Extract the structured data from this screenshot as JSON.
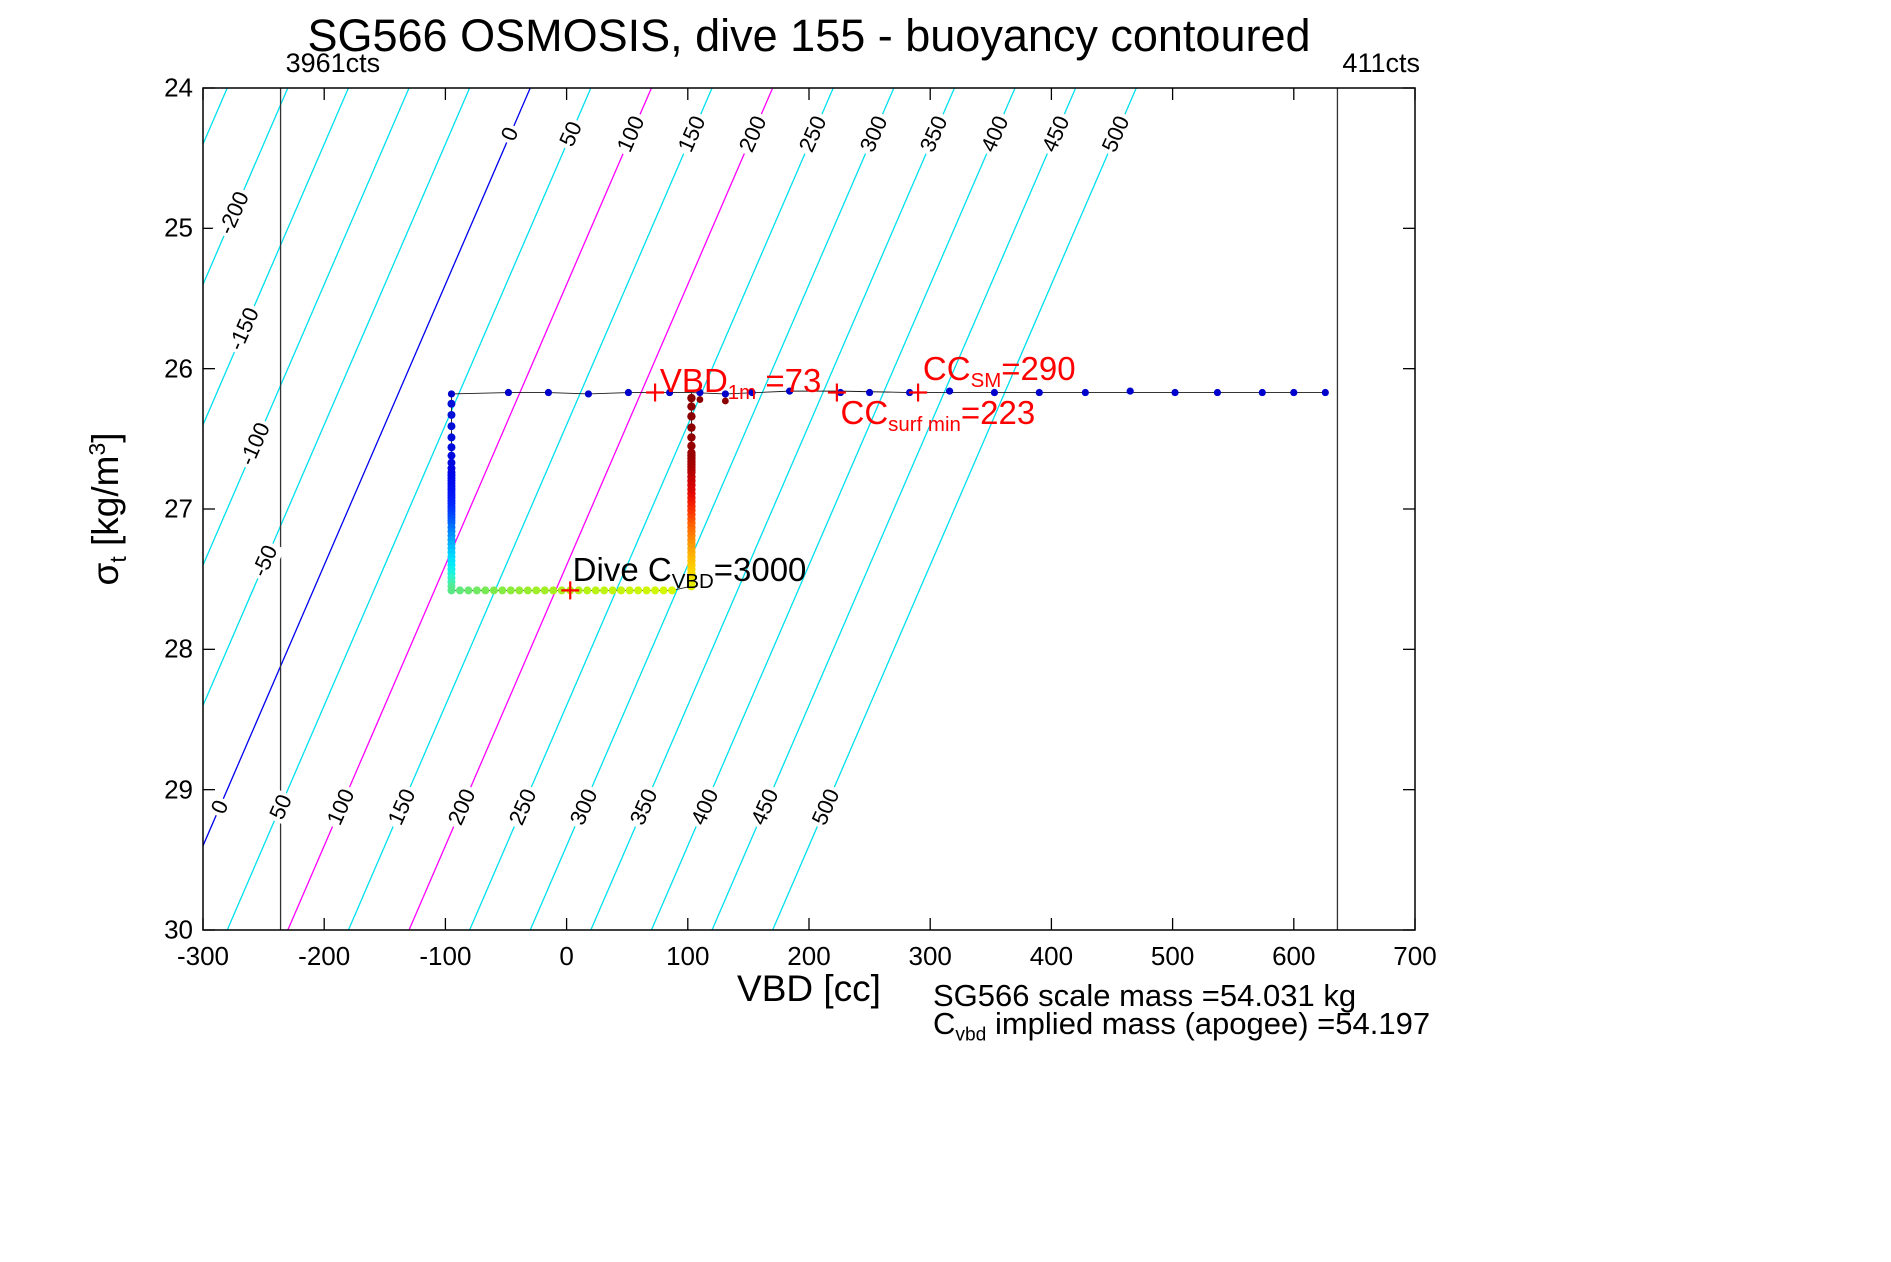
{
  "title": "SG566 OSMOSIS, dive 155 - buoyancy contoured",
  "axes": {
    "xlabel": "VBD [cc]",
    "ylabel": {
      "sigma": "σ",
      "sub": "t",
      "pre": " [kg/m",
      "sup": "3",
      "post": "]"
    },
    "x_ticks": [
      -300,
      -200,
      -100,
      0,
      100,
      200,
      300,
      400,
      500,
      600,
      700
    ],
    "y_ticks": [
      24,
      25,
      26,
      27,
      28,
      29,
      30
    ]
  },
  "footer": {
    "line1": "SG566 scale mass =54.031 kg",
    "line2_main": "C",
    "line2_sub": "vbd",
    "line2_rest": " implied mass (apogee) =54.197"
  },
  "chart_data": {
    "type": "scatter",
    "title": "SG566 OSMOSIS, dive 155 - buoyancy contoured",
    "xlabel": "VBD [cc]",
    "ylabel": "sigma_t [kg/m^3]",
    "xlim": [
      -300,
      700
    ],
    "ylim": [
      24,
      30
    ],
    "y_direction": "reversed",
    "contours": {
      "values": [
        -250,
        -200,
        -150,
        -100,
        -50,
        0,
        50,
        100,
        150,
        200,
        250,
        300,
        350,
        400,
        450,
        500
      ],
      "default_color": "#00E0EE",
      "special_colors": {
        "0": "#0000F0",
        "100": "#FF00FF",
        "200": "#FF00FF"
      },
      "x_at_top_intercept": -30,
      "dx_per_sigma": -50,
      "label_values": [
        0,
        50,
        100,
        150,
        200,
        250,
        300,
        350,
        400,
        450,
        500
      ],
      "label_top_sigma": 24.33,
      "label_bottom_sigma": 29.12,
      "label_left": [
        {
          "v": -200,
          "sigma": 24.89
        },
        {
          "v": -150,
          "sigma": 25.72
        },
        {
          "v": -100,
          "sigma": 26.54
        },
        {
          "v": -50,
          "sigma": 27.37
        }
      ]
    },
    "vertical_lines": [
      {
        "x": -236,
        "label": "3961cts"
      },
      {
        "x": 636,
        "label": "411cts"
      }
    ],
    "track": {
      "surface": {
        "color": "#0000CC",
        "points": [
          [
            -95,
            26.18
          ],
          [
            -48,
            26.17
          ],
          [
            -15,
            26.17
          ],
          [
            18,
            26.18
          ],
          [
            51,
            26.17
          ],
          [
            85,
            26.17
          ],
          [
            110,
            26.17
          ],
          [
            131,
            26.18
          ],
          [
            153,
            26.17
          ],
          [
            184,
            26.16
          ],
          [
            226,
            26.17
          ],
          [
            250,
            26.17
          ],
          [
            283,
            26.17
          ],
          [
            316,
            26.16
          ],
          [
            353,
            26.17
          ],
          [
            390,
            26.17
          ],
          [
            428,
            26.17
          ],
          [
            465,
            26.16
          ],
          [
            502,
            26.17
          ],
          [
            537,
            26.17
          ],
          [
            574,
            26.17
          ],
          [
            600,
            26.17
          ],
          [
            626,
            26.17
          ]
        ]
      },
      "descent": {
        "x": -95,
        "points": [
          [
            26.25,
            "#0010D8"
          ],
          [
            26.33,
            "#0010D8"
          ],
          [
            26.41,
            "#000FD8"
          ],
          [
            26.49,
            "#000EDA"
          ],
          [
            26.56,
            "#000CDC"
          ],
          [
            26.62,
            "#000ADE"
          ],
          [
            26.67,
            "#0008E0"
          ],
          [
            26.71,
            "#0006E2"
          ],
          [
            26.74,
            "#0004E6"
          ],
          [
            26.76,
            "#0004E8"
          ],
          [
            26.78,
            "#0006EA"
          ],
          [
            26.8,
            "#0008EC"
          ],
          [
            26.82,
            "#000AEE"
          ],
          [
            26.84,
            "#000CF0"
          ],
          [
            26.86,
            "#000EF2"
          ],
          [
            26.88,
            "#0010F4"
          ],
          [
            26.9,
            "#0014F6"
          ],
          [
            26.92,
            "#0018F8"
          ],
          [
            26.94,
            "#001CFA"
          ],
          [
            26.96,
            "#0022FC"
          ],
          [
            26.98,
            "#0028FE"
          ],
          [
            27.0,
            "#0030FF"
          ],
          [
            27.02,
            "#0038FF"
          ],
          [
            27.04,
            "#0040FF"
          ],
          [
            27.06,
            "#004AFF"
          ],
          [
            27.08,
            "#0054FF"
          ],
          [
            27.1,
            "#0060FF"
          ],
          [
            27.13,
            "#0070FF"
          ],
          [
            27.16,
            "#0080FF"
          ],
          [
            27.19,
            "#0090FF"
          ],
          [
            27.22,
            "#00A0FF"
          ],
          [
            27.25,
            "#00B0FF"
          ],
          [
            27.28,
            "#00BEFF"
          ],
          [
            27.31,
            "#00CCFF"
          ],
          [
            27.34,
            "#00D8FF"
          ],
          [
            27.37,
            "#00E2FF"
          ],
          [
            27.4,
            "#00EAFC"
          ],
          [
            27.43,
            "#0CF0F0"
          ],
          [
            27.46,
            "#1CF2E0"
          ],
          [
            27.49,
            "#2CF4CC"
          ],
          [
            27.52,
            "#3EF0B4"
          ],
          [
            27.55,
            "#50EC9A"
          ]
        ]
      },
      "bottom": {
        "sigma": 27.58,
        "points": [
          [
            -95,
            "#58E888"
          ],
          [
            -88,
            "#60E878"
          ],
          [
            -81,
            "#68E86C"
          ],
          [
            -74,
            "#70EA60"
          ],
          [
            -67,
            "#78EA54"
          ],
          [
            -60,
            "#80EA4A"
          ],
          [
            -53,
            "#86EC42"
          ],
          [
            -46,
            "#8CEC3A"
          ],
          [
            -39,
            "#92EC34"
          ],
          [
            -32,
            "#98EE2E"
          ],
          [
            -25,
            "#9EEE28"
          ],
          [
            -18,
            "#A2EE24"
          ],
          [
            -11,
            "#A6F020"
          ],
          [
            -4,
            "#AAF01C"
          ],
          [
            3,
            "#AEF018"
          ],
          [
            10,
            "#B2F216"
          ],
          [
            17,
            "#B6F214"
          ],
          [
            24,
            "#BAF212"
          ],
          [
            31,
            "#BEF410"
          ],
          [
            38,
            "#C2F40E"
          ],
          [
            45,
            "#C4F40C"
          ],
          [
            52,
            "#C8F60A"
          ],
          [
            59,
            "#CAF608"
          ],
          [
            66,
            "#CEF606"
          ],
          [
            73,
            "#D0F804"
          ],
          [
            80,
            "#D4F802"
          ],
          [
            87,
            "#D6F800"
          ]
        ]
      },
      "ascent": {
        "x": 103,
        "points": [
          [
            27.55,
            "#E0F000"
          ],
          [
            27.52,
            "#E8EC00"
          ],
          [
            27.49,
            "#F0E600"
          ],
          [
            27.46,
            "#F6DE00"
          ],
          [
            27.43,
            "#FCD600"
          ],
          [
            27.4,
            "#FFCE00"
          ],
          [
            27.37,
            "#FFC400"
          ],
          [
            27.34,
            "#FFBA00"
          ],
          [
            27.31,
            "#FFB000"
          ],
          [
            27.28,
            "#FFA600"
          ],
          [
            27.25,
            "#FF9C00"
          ],
          [
            27.22,
            "#FF9000"
          ],
          [
            27.19,
            "#FF8400"
          ],
          [
            27.16,
            "#FF7800"
          ],
          [
            27.13,
            "#FF6C00"
          ],
          [
            27.1,
            "#FF6000"
          ],
          [
            27.07,
            "#FF5200"
          ],
          [
            27.04,
            "#FF4400"
          ],
          [
            27.01,
            "#FC3600"
          ],
          [
            26.98,
            "#F82A00"
          ],
          [
            26.95,
            "#F41E00"
          ],
          [
            26.92,
            "#EE1400"
          ],
          [
            26.89,
            "#E80C00"
          ],
          [
            26.86,
            "#E00600"
          ],
          [
            26.83,
            "#D80200"
          ],
          [
            26.8,
            "#D00000"
          ],
          [
            26.77,
            "#C60000"
          ],
          [
            26.74,
            "#BC0000"
          ],
          [
            26.72,
            "#B40000"
          ],
          [
            26.7,
            "#AE0000"
          ],
          [
            26.68,
            "#A80000"
          ],
          [
            26.66,
            "#A40000"
          ],
          [
            26.64,
            "#A00000"
          ],
          [
            26.62,
            "#9C0000"
          ],
          [
            26.6,
            "#9A0000"
          ],
          [
            26.55,
            "#960000"
          ],
          [
            26.49,
            "#920000"
          ],
          [
            26.42,
            "#8E0000"
          ],
          [
            26.34,
            "#8B0000"
          ],
          [
            26.27,
            "#8B0000"
          ],
          [
            26.21,
            "#8B0000"
          ]
        ]
      },
      "apogee_extra": [
        [
          110,
          26.22,
          "#8B0000"
        ],
        [
          131,
          26.23,
          "#8B0000"
        ]
      ],
      "path": [
        [
          626,
          26.17
        ],
        [
          574,
          26.17
        ],
        [
          502,
          26.17
        ],
        [
          428,
          26.17
        ],
        [
          353,
          26.17
        ],
        [
          283,
          26.17
        ],
        [
          226,
          26.16
        ],
        [
          184,
          26.16
        ],
        [
          131,
          26.18
        ],
        [
          103,
          26.17
        ],
        [
          85,
          26.17
        ],
        [
          51,
          26.17
        ],
        [
          18,
          26.18
        ],
        [
          -15,
          26.17
        ],
        [
          -48,
          26.17
        ],
        [
          -95,
          26.18
        ],
        [
          -95,
          27.58
        ],
        [
          87,
          27.58
        ],
        [
          103,
          27.55
        ],
        [
          103,
          26.17
        ]
      ]
    },
    "markers": {
      "color": "#FF0000",
      "points": [
        {
          "x": 73,
          "sigma": 26.17
        },
        {
          "x": 223,
          "sigma": 26.17
        },
        {
          "x": 290,
          "sigma": 26.17
        },
        {
          "x": 3,
          "sigma": 27.58
        }
      ]
    },
    "annotations": [
      {
        "main": "VBD",
        "sub": "1m",
        "rest": " =73",
        "x": 77,
        "sigma": 25.95,
        "color": "#FF0000"
      },
      {
        "main": "CC",
        "sub": "SM",
        "rest": "=290",
        "x": 294,
        "sigma": 25.87,
        "color": "#FF0000"
      },
      {
        "main": "CC",
        "sub": "surf min",
        "rest": "=223",
        "x": 226,
        "sigma": 26.18,
        "color": "#FF0000"
      },
      {
        "main": "Dive C",
        "sub": "VBD",
        "rest": "=3000",
        "x": 5,
        "sigma": 27.3,
        "color": "#000000"
      }
    ]
  }
}
